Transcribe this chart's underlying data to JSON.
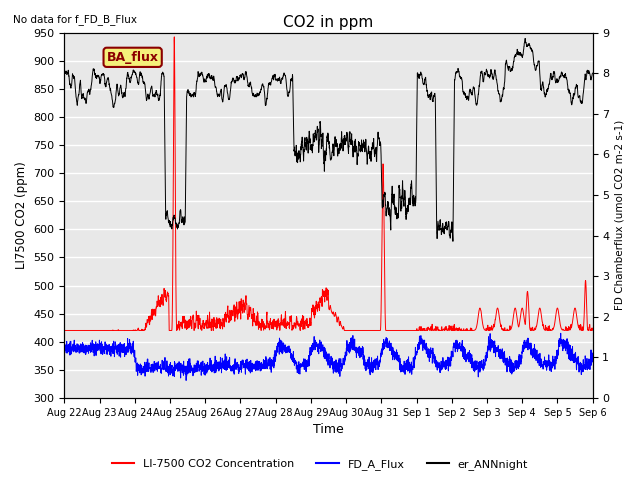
{
  "title": "CO2 in ppm",
  "top_left_text": "No data for f_FD_B_Flux",
  "bbox_label": "BA_flux",
  "ylabel_left": "LI7500 CO2 (ppm)",
  "ylabel_right": "FD Chamberflux (umol CO2 m-2 s-1)",
  "xlabel": "Time",
  "ylim_left": [
    300,
    950
  ],
  "ylim_right": [
    0.0,
    9.0
  ],
  "yticks_left": [
    300,
    350,
    400,
    450,
    500,
    550,
    600,
    650,
    700,
    750,
    800,
    850,
    900,
    950
  ],
  "yticks_right": [
    0.0,
    1.0,
    2.0,
    3.0,
    4.0,
    5.0,
    6.0,
    7.0,
    8.0,
    9.0
  ],
  "x_tick_labels": [
    "Aug 22",
    "Aug 23",
    "Aug 24",
    "Aug 25",
    "Aug 26",
    "Aug 27",
    "Aug 28",
    "Aug 29",
    "Aug 30",
    "Aug 31",
    "Sep 1",
    "Sep 2",
    "Sep 3",
    "Sep 4",
    "Sep 5",
    "Sep 6"
  ],
  "legend_entries": [
    "LI-7500 CO2 Concentration",
    "FD_A_Flux",
    "er_ANNnight"
  ],
  "legend_colors": [
    "red",
    "blue",
    "black"
  ],
  "bg_color": "#e8e8e8",
  "grid_color": "white",
  "n_points": 3000,
  "n_days": 15,
  "ann_base_high": 870,
  "ann_base_low": 600,
  "ann_noise": 30,
  "red_base": 395,
  "red_noise": 12,
  "blue_base": 375,
  "blue_noise": 10
}
